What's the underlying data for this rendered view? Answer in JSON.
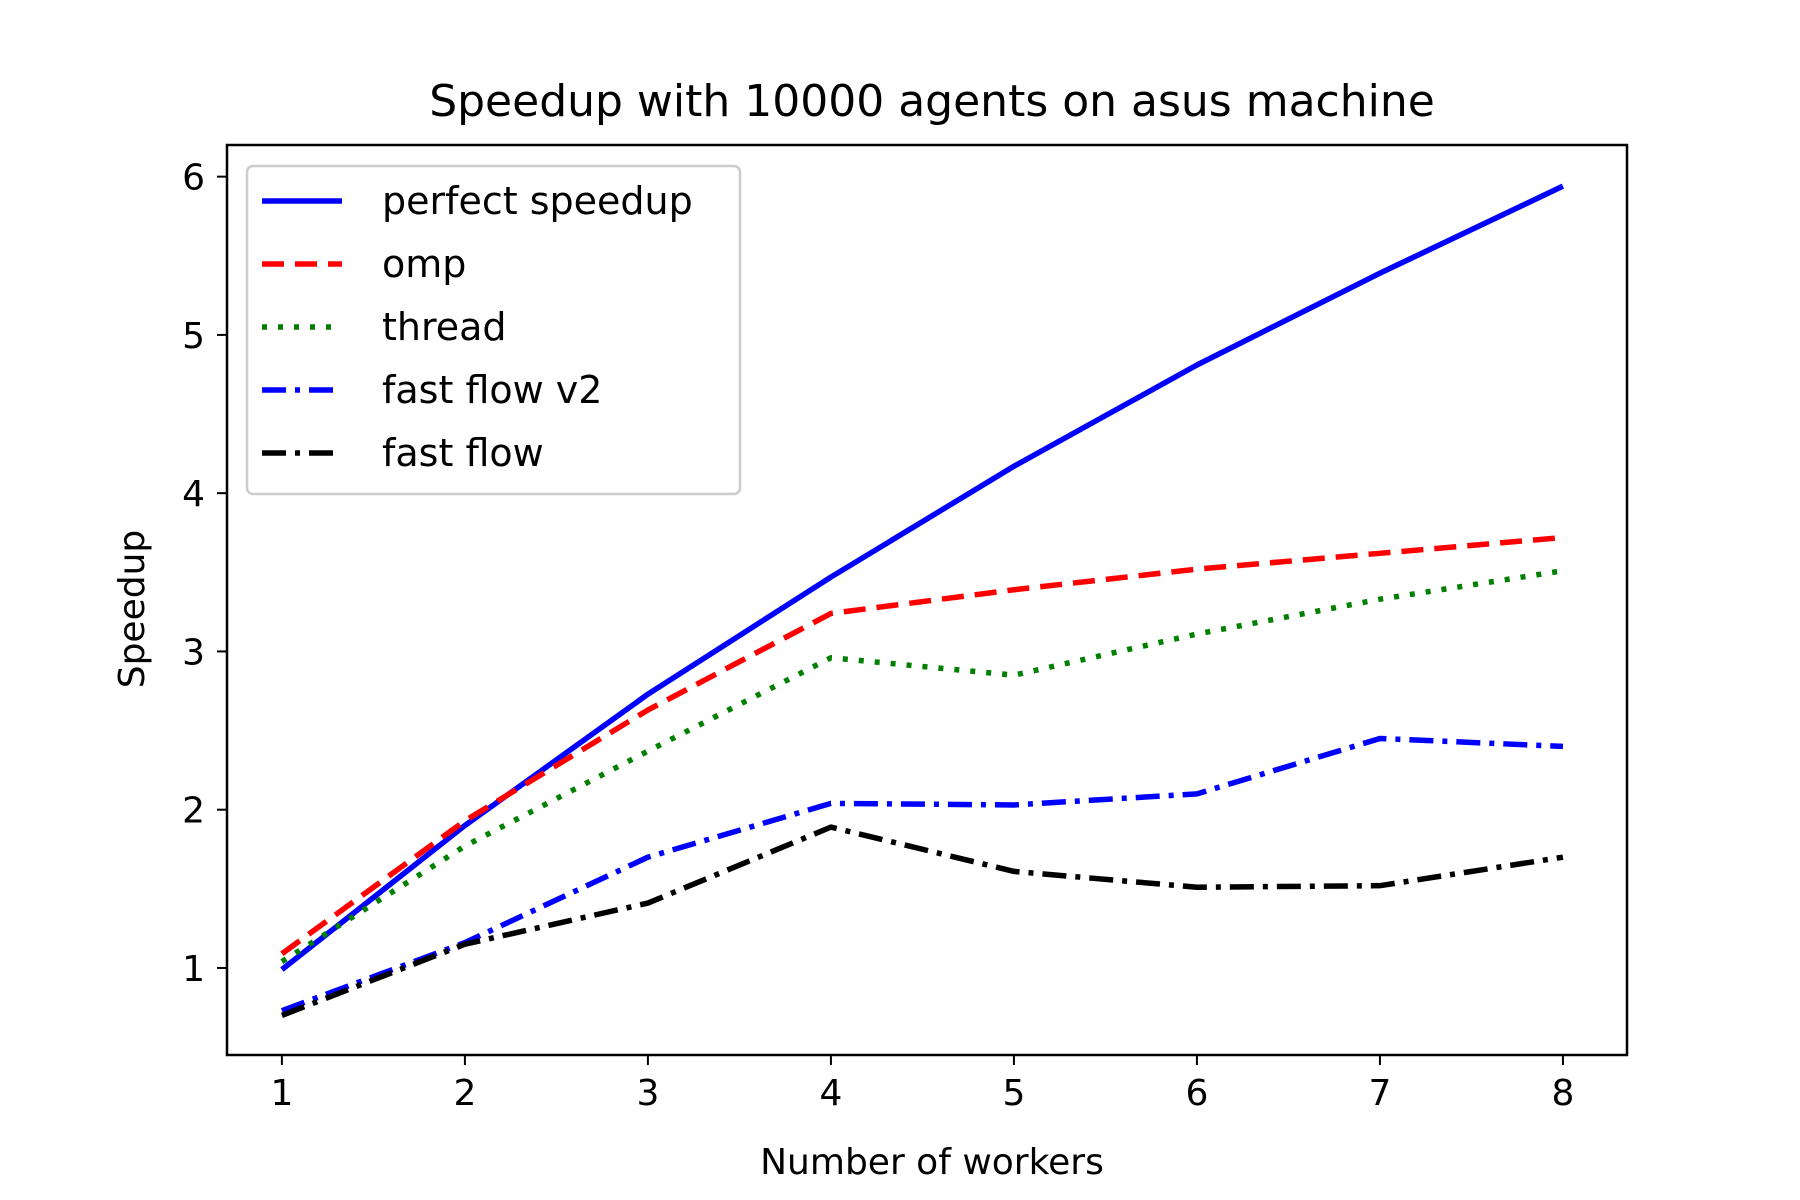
{
  "chart_data": {
    "type": "line",
    "title": "Speedup with 10000 agents on asus machine",
    "xlabel": "Number of workers",
    "ylabel": "Speedup",
    "x": [
      1,
      2,
      3,
      4,
      5,
      6,
      7,
      8
    ],
    "xlim": [
      0.7,
      8.35
    ],
    "ylim": [
      0.45,
      6.2
    ],
    "xticks": [
      1,
      2,
      3,
      4,
      5,
      6,
      7,
      8
    ],
    "yticks": [
      1,
      2,
      3,
      4,
      5,
      6
    ],
    "grid": false,
    "legend_position": "top-left",
    "series": [
      {
        "name": "perfect speedup",
        "color": "#0000ff",
        "style": "solid",
        "values": [
          0.99,
          1.9,
          2.73,
          3.47,
          4.17,
          4.81,
          5.39,
          5.94
        ]
      },
      {
        "name": "omp",
        "color": "#ff0000",
        "style": "dashed",
        "values": [
          1.09,
          1.93,
          2.63,
          3.24,
          3.39,
          3.52,
          3.62,
          3.72
        ]
      },
      {
        "name": "thread",
        "color": "#008000",
        "style": "dotted",
        "values": [
          1.04,
          1.77,
          2.37,
          2.96,
          2.85,
          3.11,
          3.33,
          3.51
        ]
      },
      {
        "name": "fast flow v2",
        "color": "#0000ff",
        "style": "dashdot",
        "values": [
          0.73,
          1.16,
          1.7,
          2.04,
          2.03,
          2.1,
          2.45,
          2.4
        ]
      },
      {
        "name": "fast flow",
        "color": "#000000",
        "style": "dashdot",
        "values": [
          0.7,
          1.15,
          1.41,
          1.89,
          1.61,
          1.51,
          1.52,
          1.7
        ]
      }
    ]
  }
}
